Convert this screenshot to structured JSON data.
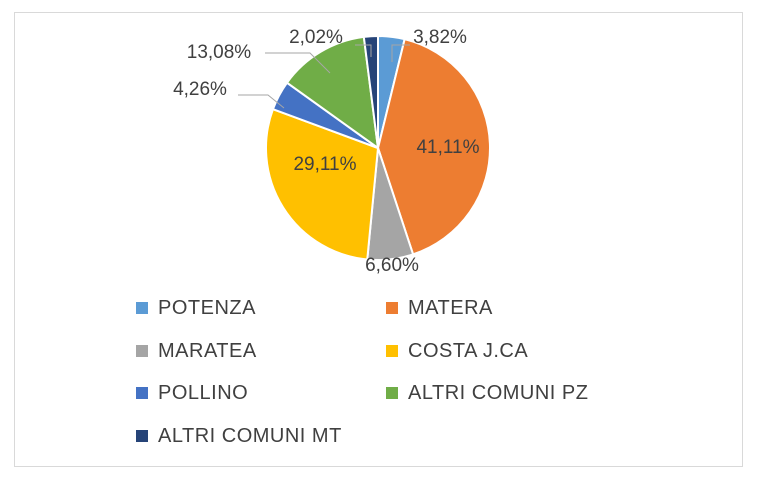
{
  "chart_data": {
    "type": "pie",
    "title": "",
    "categories": [
      "POTENZA",
      "MATERA",
      "MARATEA",
      "COSTA J.CA",
      "POLLINO",
      "ALTRI COMUNI PZ",
      "ALTRI COMUNI MT"
    ],
    "values": [
      3.82,
      41.11,
      6.6,
      29.11,
      4.26,
      13.08,
      2.02
    ],
    "labels": [
      "3,82%",
      "41,11%",
      "6,60%",
      "29,11%",
      "4,26%",
      "13,08%",
      "2,02%"
    ],
    "colors": [
      "#5b9bd5",
      "#ed7d31",
      "#a5a5a5",
      "#ffc000",
      "#4472c4",
      "#70ad47",
      "#264478"
    ],
    "legend_position": "bottom"
  }
}
